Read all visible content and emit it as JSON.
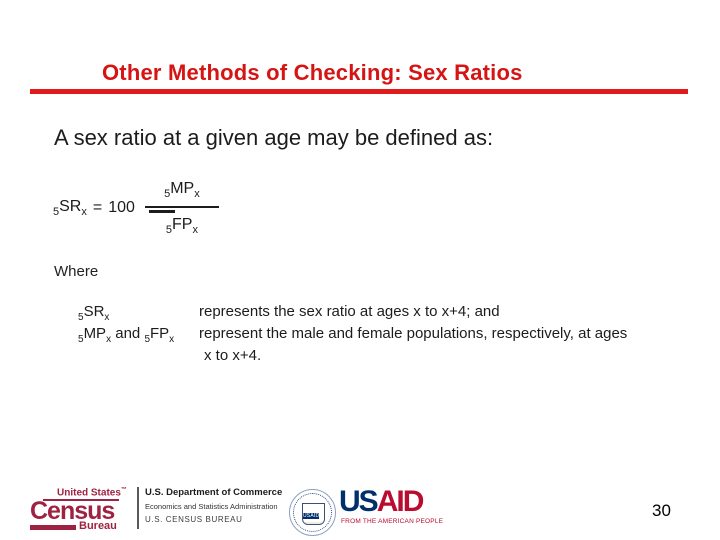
{
  "slide": {
    "title": "Other Methods of Checking: Sex Ratios",
    "intro": "A sex ratio at a given age may be defined as:",
    "formula": {
      "lhs_pre": "5",
      "lhs_base": "SR",
      "lhs_sub": "x",
      "equals": "=",
      "coefficient": "100",
      "num_pre": "5",
      "num_base": "MP",
      "num_sub": "x",
      "den_pre": "5",
      "den_base": "FP",
      "den_sub": "x"
    },
    "where_label": "Where",
    "definitions": {
      "term1_pre": "5",
      "term1_base": "SR",
      "term1_sub": "x",
      "def1": "represents the sex ratio at ages x to x+4; and",
      "term2a_pre": "5",
      "term2a_base": "MP",
      "term2a_sub": "x",
      "term2_joiner": " and ",
      "term2b_pre": "5",
      "term2b_base": "FP",
      "term2b_sub": "x",
      "def2_line1": "represent the male and female populations, respectively, at ages",
      "def2_line2": "x to x+4."
    },
    "page_number": "30"
  },
  "footer": {
    "census": {
      "top_text": "United States",
      "trademark": "™",
      "main_text": "Census",
      "sub_text": "Bureau"
    },
    "commerce": {
      "line1": "U.S. Department of Commerce",
      "line2": "Economics and Statistics Administration",
      "line3": "U.S. CENSUS BUREAU"
    },
    "usaid": {
      "seal_label": "USAID",
      "word_part1": "US",
      "word_part2": "AID",
      "tagline": "FROM THE AMERICAN PEOPLE"
    }
  },
  "colors": {
    "title_red": "#D51414",
    "rule_red": "#E31A1A",
    "census_maroon": "#9E2241",
    "usaid_blue": "#002F6C",
    "usaid_red": "#BA0C2F",
    "body_text": "#1C1C1C"
  }
}
